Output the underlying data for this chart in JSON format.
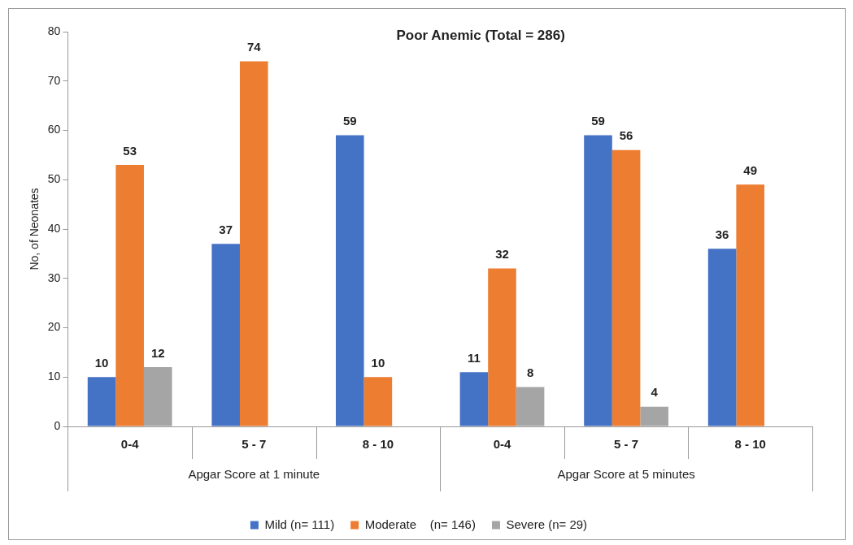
{
  "chart_data": {
    "type": "bar",
    "title": "Poor Anemic (Total = 286)",
    "ylabel": "No, of Neonates",
    "categories": [
      "0-4",
      "5 - 7",
      "8 - 10",
      "0-4",
      "5 - 7",
      "8 - 10"
    ],
    "series": [
      {
        "name": "Mild (n= 111)",
        "color": "#4472c4",
        "values": [
          10,
          37,
          59,
          11,
          59,
          36
        ]
      },
      {
        "name": "Moderate    (n= 146)",
        "color": "#ed7d31",
        "values": [
          53,
          74,
          10,
          32,
          56,
          49
        ]
      },
      {
        "name": "Severe (n= 29)",
        "color": "#a5a5a5",
        "values": [
          12,
          null,
          null,
          8,
          4,
          null
        ]
      }
    ],
    "annotations": [
      "Apgar Score at 1 minute",
      "Apgar Score at 5 minutes"
    ],
    "ylim": [
      0,
      80
    ],
    "yticks": [
      0,
      10,
      20,
      30,
      40,
      50,
      60,
      70,
      80
    ],
    "grid": false,
    "legend": "bottom",
    "data_labels": true
  }
}
